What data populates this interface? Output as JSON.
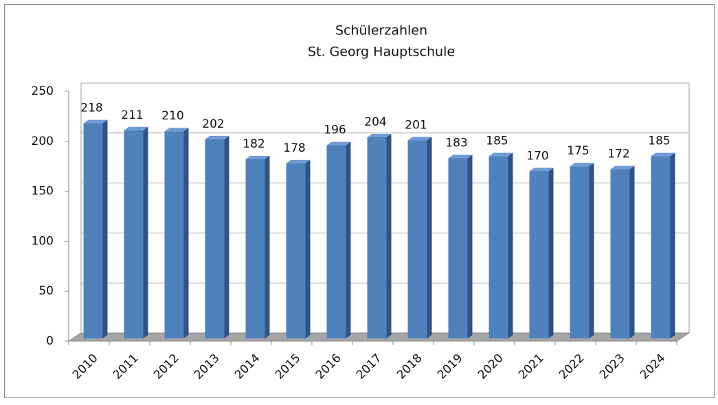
{
  "chart_data": {
    "type": "bar",
    "title": "Schülerzahlen",
    "subtitle": "St. Georg Hauptschule",
    "categories": [
      "2010",
      "2011",
      "2012",
      "2013",
      "2014",
      "2015",
      "2016",
      "2017",
      "2018",
      "2019",
      "2020",
      "2021",
      "2022",
      "2023",
      "2024"
    ],
    "values": [
      218,
      211,
      210,
      202,
      182,
      178,
      196,
      204,
      201,
      183,
      185,
      170,
      175,
      172,
      185
    ],
    "color": "#4f81bd",
    "ylim": [
      0,
      250
    ],
    "yticks": [
      0,
      50,
      100,
      150,
      200,
      250
    ],
    "grid": true
  }
}
